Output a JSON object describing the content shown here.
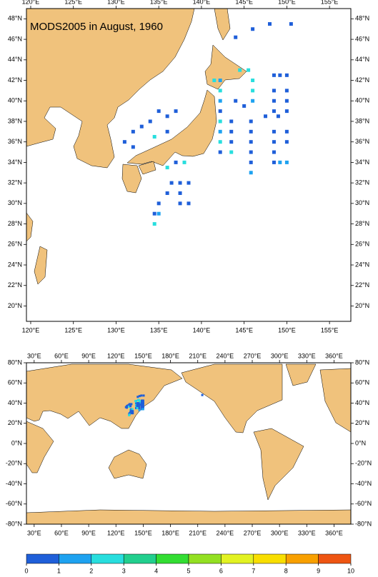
{
  "chart_data": [
    {
      "type": "map",
      "title": "MODS2005 in August, 1960",
      "xlim": [
        119.5,
        157.5
      ],
      "ylim": [
        18.5,
        49
      ],
      "xticks": [
        {
          "value": 120,
          "label": "120°E"
        },
        {
          "value": 125,
          "label": "125°E"
        },
        {
          "value": 130,
          "label": "130°E"
        },
        {
          "value": 135,
          "label": "135°E"
        },
        {
          "value": 140,
          "label": "140°E"
        },
        {
          "value": 145,
          "label": "145°E"
        },
        {
          "value": 150,
          "label": "150°E"
        },
        {
          "value": 155,
          "label": "155°E"
        }
      ],
      "yticks": [
        {
          "value": 20,
          "label": "20°N"
        },
        {
          "value": 22,
          "label": "22°N"
        },
        {
          "value": 24,
          "label": "24°N"
        },
        {
          "value": 26,
          "label": "26°N"
        },
        {
          "value": 28,
          "label": "28°N"
        },
        {
          "value": 30,
          "label": "30°N"
        },
        {
          "value": 32,
          "label": "32°N"
        },
        {
          "value": 34,
          "label": "34°N"
        },
        {
          "value": 36,
          "label": "36°N"
        },
        {
          "value": 38,
          "label": "38°N"
        },
        {
          "value": 40,
          "label": "40°N"
        },
        {
          "value": 42,
          "label": "42°N"
        },
        {
          "value": 44,
          "label": "44°N"
        },
        {
          "value": 46,
          "label": "46°N"
        },
        {
          "value": 48,
          "label": "48°N"
        }
      ],
      "points": {
        "lon": [
          142.2,
          142.2,
          142.2,
          142.2,
          142.2,
          142.2,
          142.2,
          142.2,
          141.5,
          143.5,
          143.5,
          143.5,
          143.5,
          145.8,
          145.8,
          145.8,
          145.8,
          145.8,
          145.8,
          144.5,
          145.5,
          146,
          146,
          146,
          145,
          144,
          148.5,
          148.5,
          148.5,
          148.5,
          148.5,
          148.5,
          148.5,
          148.5,
          150,
          150,
          150,
          150,
          150,
          150,
          150,
          149.2,
          149.2,
          147.5,
          149,
          136,
          137,
          138,
          136.5,
          137.5,
          138.5,
          136,
          137.5,
          138.5,
          137.5,
          135,
          134.5,
          135,
          134.5,
          132,
          133,
          134,
          135,
          136,
          137,
          131,
          132,
          134.5,
          136,
          144,
          146,
          148,
          150.5,
          215
        ],
        "lat": [
          42,
          41,
          40,
          39,
          38,
          37,
          36,
          35,
          42,
          38,
          37,
          36,
          35,
          38,
          37,
          36,
          35,
          34,
          33,
          43,
          43,
          42,
          41,
          40,
          39.5,
          40,
          42.5,
          41,
          40,
          39,
          37,
          36,
          35,
          34,
          42.5,
          41,
          40,
          39,
          37,
          36,
          34,
          42.5,
          34,
          38.5,
          38.5,
          33.5,
          34,
          34,
          32,
          32,
          32,
          31,
          31,
          30,
          30,
          30,
          29,
          29,
          28,
          37,
          37.5,
          38,
          39,
          38.5,
          39,
          36,
          35.5,
          36.5,
          37,
          46.2,
          47,
          47.5,
          47.5,
          48
        ],
        "values": [
          1.5,
          2.5,
          1.5,
          0.5,
          2.5,
          1.5,
          2.5,
          0.5,
          2.5,
          0.5,
          0.5,
          0.5,
          2.5,
          0.5,
          0.5,
          0.5,
          0.5,
          0.5,
          1.5,
          2.5,
          2.5,
          2.5,
          2.5,
          1.5,
          0.5,
          0.5,
          0.5,
          0.5,
          0.5,
          0.5,
          0.5,
          0.5,
          0.5,
          0.5,
          0.5,
          0.5,
          0.5,
          0.5,
          0.5,
          0.5,
          1.5,
          0.5,
          1.5,
          0.5,
          0.5,
          2.5,
          0.5,
          2.5,
          0.5,
          0.5,
          0.5,
          0.5,
          0.5,
          0.5,
          0.5,
          0.5,
          0.5,
          1.5,
          2.5,
          0.5,
          0.5,
          0.5,
          0.5,
          0.5,
          0.5,
          0.5,
          0.5,
          2.5,
          0.5,
          0.5,
          0.5,
          0.5,
          0.5,
          0.5
        ]
      }
    },
    {
      "type": "map",
      "xlim": [
        21.5,
        378.5
      ],
      "ylim": [
        -80,
        80
      ],
      "xticks": [
        {
          "value": 30,
          "label": "30°E"
        },
        {
          "value": 60,
          "label": "60°E"
        },
        {
          "value": 90,
          "label": "90°E"
        },
        {
          "value": 120,
          "label": "120°E"
        },
        {
          "value": 150,
          "label": "150°E"
        },
        {
          "value": 180,
          "label": "180°E"
        },
        {
          "value": 210,
          "label": "210°E"
        },
        {
          "value": 240,
          "label": "240°E"
        },
        {
          "value": 270,
          "label": "270°E"
        },
        {
          "value": 300,
          "label": "300°E"
        },
        {
          "value": 330,
          "label": "330°E"
        },
        {
          "value": 360,
          "label": "360°E"
        }
      ],
      "yticks": [
        {
          "value": -80,
          "label": "-80°N"
        },
        {
          "value": -60,
          "label": "-60°N"
        },
        {
          "value": -40,
          "label": "-40°N"
        },
        {
          "value": -20,
          "label": "-20°N"
        },
        {
          "value": 0,
          "label": "0°N"
        },
        {
          "value": 20,
          "label": "20°N"
        },
        {
          "value": 40,
          "label": "40°N"
        },
        {
          "value": 60,
          "label": "60°N"
        },
        {
          "value": 80,
          "label": "80°N"
        }
      ]
    },
    {
      "type": "colorbar",
      "ticks": [
        0,
        1,
        2,
        3,
        4,
        5,
        6,
        7,
        8,
        9,
        10
      ],
      "colors": [
        "#1f5fd9",
        "#1ea2f0",
        "#28dede",
        "#22cf8e",
        "#33dd33",
        "#93e022",
        "#e2f222",
        "#f8de00",
        "#f8a000",
        "#ee5512"
      ]
    }
  ]
}
